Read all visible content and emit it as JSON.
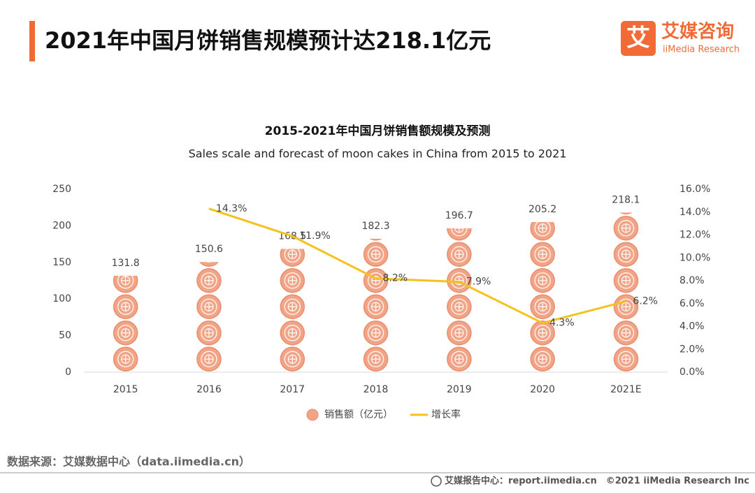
{
  "header": {
    "title": "2021年中国月饼销售规模预计达218.1亿元",
    "logo": {
      "mark": "艾",
      "name": "艾媒咨询",
      "english": "iiMedia Research"
    }
  },
  "chart_data": {
    "type": "bar",
    "title": "2015-2021年中国月饼销售额规模及预测",
    "subtitle": "Sales scale and forecast of moon cakes in China from 2015 to 2021",
    "categories": [
      "2015",
      "2016",
      "2017",
      "2018",
      "2019",
      "2020",
      "2021E"
    ],
    "series": [
      {
        "name": "销售额（亿元）",
        "type": "bar",
        "color": "#f2a486",
        "values": [
          131.8,
          150.6,
          168.5,
          182.3,
          196.7,
          205.2,
          218.1
        ]
      },
      {
        "name": "增长率",
        "type": "line",
        "axis": "y2",
        "color": "#f5c11a",
        "values": [
          null,
          14.3,
          11.9,
          8.2,
          7.9,
          4.3,
          6.2
        ],
        "value_labels": [
          null,
          "14.3%",
          "11.9%",
          "8.2%",
          "7.9%",
          "4.3%",
          "6.2%"
        ]
      }
    ],
    "ylim": [
      0,
      250
    ],
    "yticks": [
      0,
      50,
      100,
      150,
      200,
      250
    ],
    "y2lim": [
      0,
      16
    ],
    "y2ticks": [
      {
        "value": 0,
        "label": "0.0%"
      },
      {
        "value": 2,
        "label": "2.0%"
      },
      {
        "value": 4,
        "label": "4.0%"
      },
      {
        "value": 6,
        "label": "6.0%"
      },
      {
        "value": 8,
        "label": "8.0%"
      },
      {
        "value": 10,
        "label": "10.0%"
      },
      {
        "value": 12,
        "label": "12.0%"
      },
      {
        "value": 14,
        "label": "14.0%"
      },
      {
        "value": 16,
        "label": "16.0%"
      }
    ],
    "grid": false,
    "legend": "bottom"
  },
  "source": "数据来源：艾媒数据中心（data.iimedia.cn）",
  "footer": {
    "left": "艾媒报告中心：report.iimedia.cn",
    "right": "©2021  iiMedia Research  Inc"
  }
}
